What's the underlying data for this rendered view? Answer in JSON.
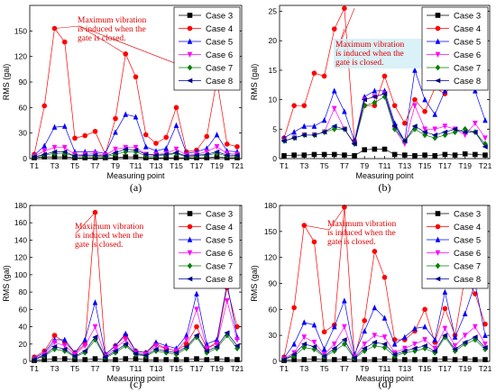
{
  "figure": {
    "legend_items": [
      {
        "name": "Case 3",
        "color": "#000000",
        "marker": "square"
      },
      {
        "name": "Case 4",
        "color": "#ff0000",
        "marker": "circle"
      },
      {
        "name": "Case 5",
        "color": "#0000ff",
        "marker": "triangle-up"
      },
      {
        "name": "Case 6",
        "color": "#ff00ff",
        "marker": "triangle-down"
      },
      {
        "name": "Case 7",
        "color": "#008000",
        "marker": "diamond"
      },
      {
        "name": "Case 8",
        "color": "#00008b",
        "marker": "triangle-left"
      }
    ]
  },
  "chart_data": [
    {
      "panel_label": "(a)",
      "type": "line",
      "xlabel": "Measuring point",
      "ylabel": "RMS (gal)",
      "ylim": [
        0,
        180
      ],
      "yticks": [
        0,
        30,
        60,
        90,
        120,
        150
      ],
      "x": [
        "T1",
        "T2",
        "T3",
        "T4",
        "T5",
        "T6",
        "T7",
        "T8",
        "T9",
        "T10",
        "T11",
        "T12",
        "T13",
        "T14",
        "T15",
        "T16",
        "T17",
        "T18",
        "T19",
        "T20",
        "T21"
      ],
      "xtick_labels": [
        "T1",
        "T3",
        "T5",
        "T7",
        "T9",
        "T11",
        "T13",
        "T15",
        "T17",
        "T19",
        "T21"
      ],
      "annotation": [
        "Maximum vibration",
        "is induced when the",
        "gate is closed."
      ],
      "legend_position": "top-right",
      "series": [
        {
          "name": "Case 3",
          "values": [
            1,
            2,
            2,
            2,
            1,
            1,
            1,
            1,
            1,
            2,
            2,
            1,
            1,
            1,
            1,
            1,
            1,
            1,
            2,
            1,
            1
          ]
        },
        {
          "name": "Case 4",
          "values": [
            5,
            62,
            153,
            137,
            24,
            27,
            32,
            5,
            47,
            123,
            96,
            28,
            18,
            25,
            60,
            8,
            10,
            26,
            93,
            17,
            14
          ]
        },
        {
          "name": "Case 5",
          "values": [
            4,
            15,
            37,
            38,
            8,
            8,
            8,
            6,
            31,
            52,
            49,
            14,
            9,
            12,
            39,
            6,
            8,
            12,
            28,
            9,
            8
          ]
        },
        {
          "name": "Case 6",
          "values": [
            3,
            9,
            13,
            13,
            5,
            5,
            6,
            4,
            11,
            13,
            13,
            5,
            5,
            6,
            11,
            4,
            5,
            8,
            14,
            6,
            5
          ]
        },
        {
          "name": "Case 7",
          "values": [
            2,
            4,
            6,
            6,
            3,
            3,
            3,
            2,
            5,
            8,
            8,
            3,
            3,
            4,
            6,
            2,
            3,
            4,
            6,
            3,
            3
          ]
        },
        {
          "name": "Case 8",
          "values": [
            2,
            5,
            8,
            8,
            3,
            4,
            4,
            3,
            7,
            11,
            10,
            5,
            4,
            5,
            7,
            3,
            4,
            5,
            8,
            4,
            4
          ]
        }
      ]
    },
    {
      "panel_label": "(b)",
      "type": "line",
      "xlabel": "Measuring point",
      "ylabel": "RMS (gal)",
      "ylim": [
        0,
        26
      ],
      "yticks": [
        0,
        5,
        10,
        15,
        20,
        25
      ],
      "x": [
        "T1",
        "T2",
        "T3",
        "T4",
        "T5",
        "T6",
        "T7",
        "T8",
        "T9",
        "T10",
        "T11",
        "T12",
        "T13",
        "T14",
        "T15",
        "T16",
        "T17",
        "T18",
        "T19",
        "T20",
        "T21"
      ],
      "xtick_labels": [
        "T1",
        "T3",
        "T5",
        "T7",
        "T9",
        "T11",
        "T13",
        "T15",
        "T17",
        "T19",
        "T21"
      ],
      "annotation": [
        "Maximum vibration",
        "is induced when the",
        "gate is closed."
      ],
      "legend_position": "top-right",
      "series": [
        {
          "name": "Case 3",
          "values": [
            0.5,
            0.6,
            0.6,
            0.7,
            0.7,
            0.7,
            0.6,
            0.5,
            1.5,
            1.6,
            1.6,
            0.7,
            0.6,
            0.5,
            0.6,
            0.5,
            0.7,
            0.6,
            0.8,
            0.7,
            0.6
          ]
        },
        {
          "name": "Case 4",
          "values": [
            3.5,
            9,
            9,
            14.5,
            14,
            22,
            25.5,
            3,
            9,
            9,
            14,
            9,
            6,
            10,
            8,
            12,
            11,
            13,
            12,
            13,
            16
          ]
        },
        {
          "name": "Case 5",
          "values": [
            3.5,
            4.5,
            5.5,
            5.5,
            6.5,
            11.5,
            8,
            3,
            10.5,
            11.5,
            11.5,
            6,
            3,
            15,
            10,
            7.5,
            11.5,
            12.5,
            13.5,
            11.5,
            6.5
          ]
        },
        {
          "name": "Case 6",
          "values": [
            3,
            3.5,
            4,
            4,
            4.5,
            8.5,
            5,
            2.5,
            10,
            10.5,
            11,
            5,
            2.5,
            9,
            5,
            5,
            5.5,
            5,
            4,
            6,
            3.5
          ]
        },
        {
          "name": "Case 7",
          "values": [
            3,
            3.5,
            4,
            4,
            4.5,
            5,
            5,
            2.5,
            9,
            9.5,
            10.5,
            5,
            3,
            5,
            4,
            3.5,
            4,
            4.5,
            5,
            4.5,
            2.5
          ]
        },
        {
          "name": "Case 8",
          "values": [
            3,
            3.5,
            4,
            4,
            4.5,
            5.5,
            5,
            2.5,
            10,
            10.5,
            11,
            5.5,
            3,
            5.5,
            4.5,
            4,
            4.5,
            5,
            4.5,
            4.5,
            2
          ]
        }
      ]
    },
    {
      "panel_label": "(c)",
      "type": "line",
      "xlabel": "Measuring point",
      "ylabel": "RMS (gal)",
      "ylim": [
        0,
        180
      ],
      "yticks": [
        0,
        20,
        40,
        60,
        80,
        100,
        120,
        140,
        160,
        180
      ],
      "x": [
        "T1",
        "T2",
        "T3",
        "T4",
        "T5",
        "T6",
        "T7",
        "T8",
        "T9",
        "T10",
        "T11",
        "T12",
        "T13",
        "T14",
        "T15",
        "T16",
        "T17",
        "T18",
        "T19",
        "T20",
        "T21"
      ],
      "xtick_labels": [
        "T1",
        "T3",
        "T5",
        "T7",
        "T9",
        "T11",
        "T13",
        "T15",
        "T17",
        "T19",
        "T21"
      ],
      "annotation": [
        "Maximum vibration",
        "is induced when the",
        "gate is closed."
      ],
      "legend_position": "top-right",
      "series": [
        {
          "name": "Case 3",
          "values": [
            1,
            2,
            3,
            3,
            2,
            2,
            3,
            2,
            2,
            3,
            3,
            2,
            2,
            2,
            2,
            2,
            3,
            2,
            3,
            2,
            2
          ]
        },
        {
          "name": "Case 4",
          "values": [
            5,
            12,
            30,
            22,
            10,
            20,
            172,
            8,
            18,
            30,
            12,
            10,
            20,
            15,
            12,
            20,
            40,
            15,
            22,
            85,
            40
          ]
        },
        {
          "name": "Case 5",
          "values": [
            4,
            10,
            25,
            25,
            10,
            25,
            68,
            8,
            18,
            32,
            12,
            10,
            22,
            18,
            15,
            30,
            78,
            20,
            25,
            90,
            28
          ]
        },
        {
          "name": "Case 6",
          "values": [
            3,
            8,
            22,
            18,
            8,
            18,
            40,
            6,
            15,
            25,
            10,
            8,
            18,
            15,
            12,
            25,
            60,
            15,
            20,
            70,
            25
          ]
        },
        {
          "name": "Case 7",
          "values": [
            2,
            6,
            14,
            12,
            5,
            10,
            25,
            4,
            10,
            18,
            8,
            6,
            12,
            10,
            8,
            15,
            28,
            10,
            15,
            30,
            15
          ]
        },
        {
          "name": "Case 8",
          "values": [
            2,
            7,
            17,
            14,
            6,
            12,
            28,
            5,
            12,
            20,
            9,
            7,
            14,
            12,
            10,
            17,
            30,
            12,
            17,
            33,
            18
          ]
        }
      ]
    },
    {
      "panel_label": "(d)",
      "type": "line",
      "xlabel": "Measuring point",
      "ylabel": "RMS (gal)",
      "ylim": [
        0,
        180
      ],
      "yticks": [
        0,
        30,
        60,
        90,
        120,
        150,
        180
      ],
      "x": [
        "T1",
        "T2",
        "T3",
        "T4",
        "T5",
        "T6",
        "T7",
        "T8",
        "T9",
        "T10",
        "T11",
        "T12",
        "T13",
        "T14",
        "T15",
        "T16",
        "T17",
        "T18",
        "T19",
        "T20",
        "T21"
      ],
      "xtick_labels": [
        "T1",
        "T3",
        "T5",
        "T7",
        "T9",
        "T11",
        "T13",
        "T15",
        "T17",
        "T19",
        "T21"
      ],
      "annotation": [
        "Maximum vibration",
        "is induced when the",
        "gate is closed."
      ],
      "legend_position": "top-right",
      "series": [
        {
          "name": "Case 3",
          "values": [
            1,
            2,
            2,
            3,
            2,
            2,
            3,
            2,
            2,
            2,
            3,
            2,
            2,
            2,
            2,
            2,
            3,
            2,
            3,
            2,
            2
          ]
        },
        {
          "name": "Case 4",
          "values": [
            5,
            62,
            157,
            138,
            34,
            42,
            178,
            5,
            47,
            127,
            97,
            25,
            25,
            35,
            60,
            22,
            61,
            30,
            98,
            78,
            43
          ]
        },
        {
          "name": "Case 5",
          "values": [
            4,
            20,
            45,
            42,
            14,
            40,
            70,
            8,
            35,
            62,
            50,
            20,
            28,
            38,
            40,
            25,
            80,
            28,
            55,
            90,
            30
          ]
        },
        {
          "name": "Case 6",
          "values": [
            3,
            10,
            28,
            22,
            8,
            20,
            40,
            5,
            20,
            30,
            28,
            10,
            15,
            20,
            25,
            15,
            38,
            18,
            30,
            40,
            20
          ]
        },
        {
          "name": "Case 7",
          "values": [
            2,
            6,
            16,
            14,
            5,
            12,
            20,
            3,
            12,
            18,
            16,
            6,
            10,
            12,
            15,
            10,
            28,
            12,
            20,
            25,
            14
          ]
        },
        {
          "name": "Case 8",
          "values": [
            2,
            8,
            20,
            17,
            6,
            15,
            25,
            4,
            15,
            22,
            20,
            8,
            12,
            15,
            18,
            12,
            30,
            14,
            22,
            28,
            16
          ]
        }
      ]
    }
  ]
}
